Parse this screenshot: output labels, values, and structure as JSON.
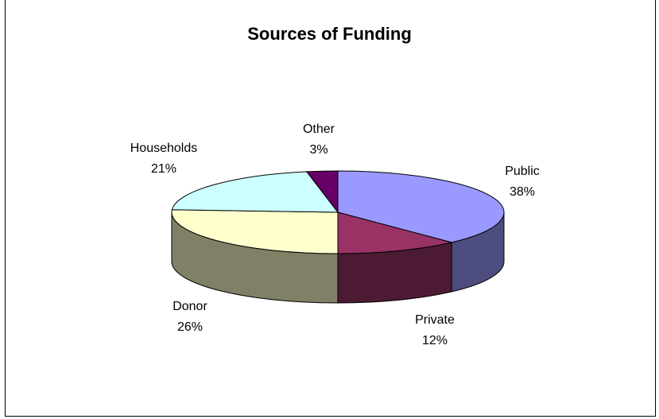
{
  "chart_data": {
    "type": "pie",
    "title": "Sources of Funding",
    "slices": [
      {
        "name": "Public",
        "value": 38,
        "label": "38%",
        "color": "#9999ff"
      },
      {
        "name": "Private",
        "value": 12,
        "label": "12%",
        "color": "#993366"
      },
      {
        "name": "Donor",
        "value": 26,
        "label": "26%",
        "color": "#ffffcc"
      },
      {
        "name": "Households",
        "value": 21,
        "label": "21%",
        "color": "#ccffff"
      },
      {
        "name": "Other",
        "value": 3,
        "label": "3%",
        "color": "#660066"
      }
    ],
    "style": "3d-pie"
  }
}
